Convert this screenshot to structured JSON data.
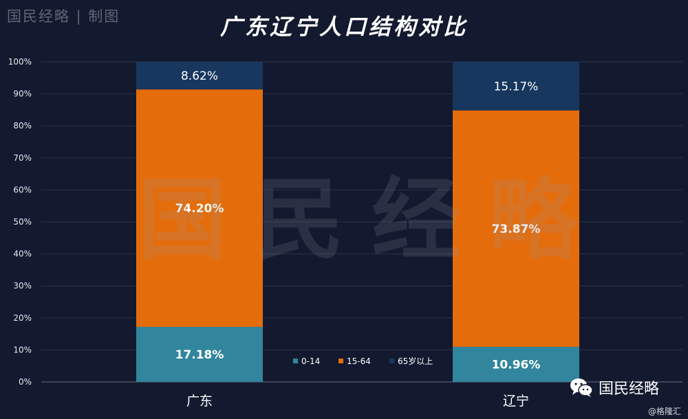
{
  "branding": {
    "top_label": "国民经略 | 制图",
    "watermark": "国民经略",
    "account_name": "国民经略",
    "credit": "@格隆汇"
  },
  "chart_data": {
    "type": "bar",
    "stacked": true,
    "title": "广东辽宁人口结构对比",
    "xlabel": "",
    "ylabel": "",
    "categories": [
      "广东",
      "辽宁"
    ],
    "series": [
      {
        "name": "0-14",
        "values": [
          17.18,
          10.96
        ],
        "labels": [
          "17.18%",
          "10.96%"
        ],
        "color": "#31859c"
      },
      {
        "name": "15-64",
        "values": [
          74.2,
          73.87
        ],
        "labels": [
          "74.20%",
          "73.87%"
        ],
        "color": "#e46c0a"
      },
      {
        "name": "65岁以上",
        "values": [
          8.62,
          15.17
        ],
        "labels": [
          "8.62%",
          "15.17%"
        ],
        "color": "#17375e"
      }
    ],
    "ylim": [
      0,
      100
    ],
    "yticks": [
      "0%",
      "10%",
      "20%",
      "30%",
      "40%",
      "50%",
      "60%",
      "70%",
      "80%",
      "90%",
      "100%"
    ],
    "grid": true,
    "legend_position": "bottom-center"
  }
}
